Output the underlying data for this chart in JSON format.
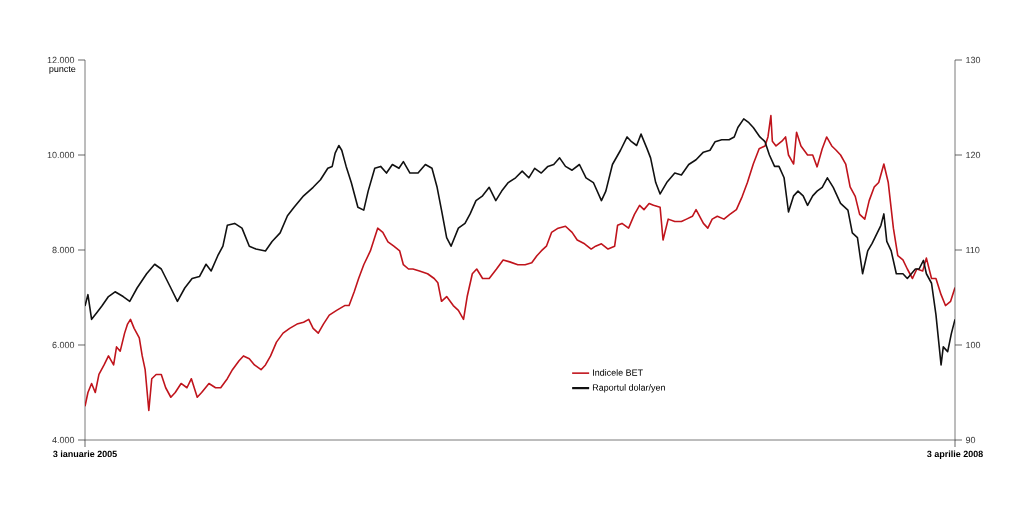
{
  "chart_data": {
    "type": "line",
    "ylabel": "puncte",
    "xlim": [
      "2005-01-03",
      "2008-04-03"
    ],
    "ylim": [
      4000,
      12000
    ],
    "yticks": [
      {
        "value": 4000,
        "label": "4.000"
      },
      {
        "value": 6000,
        "label": "6.000"
      },
      {
        "value": 8000,
        "label": "8.000"
      },
      {
        "value": 10000,
        "label": "10.000"
      },
      {
        "value": 12000,
        "label": "12.000"
      }
    ],
    "y2lim": [
      90,
      130
    ],
    "y2ticks": [
      90,
      100,
      110,
      120,
      130
    ],
    "xticks": [
      {
        "value": "2005-01-03",
        "label": "3 ianuarie 2005"
      },
      {
        "value": "2008-04-03",
        "label": "3 aprilie 2008"
      }
    ],
    "legend": "bottom",
    "grid": false,
    "marker": "none",
    "line_style": "solid",
    "series": [
      {
        "name": "Indicele BET",
        "color": "#c0141c",
        "x": [
          "2005-01-03",
          "2005-01-07",
          "2005-01-12",
          "2005-01-17",
          "2005-01-22",
          "2005-01-29",
          "2005-02-04",
          "2005-02-11",
          "2005-02-15",
          "2005-02-20",
          "2005-02-26",
          "2005-03-02",
          "2005-03-06",
          "2005-03-11",
          "2005-03-18",
          "2005-03-22",
          "2005-03-26",
          "2005-03-31",
          "2005-04-04",
          "2005-04-10",
          "2005-04-17",
          "2005-04-23",
          "2005-04-30",
          "2005-05-06",
          "2005-05-14",
          "2005-05-22",
          "2005-05-28",
          "2005-06-05",
          "2005-06-11",
          "2005-06-21",
          "2005-06-30",
          "2005-07-07",
          "2005-07-16",
          "2005-07-23",
          "2005-08-01",
          "2005-08-07",
          "2005-08-15",
          "2005-08-22",
          "2005-08-31",
          "2005-09-06",
          "2005-09-13",
          "2005-09-21",
          "2005-09-30",
          "2005-10-09",
          "2005-10-19",
          "2005-10-28",
          "2005-11-04",
          "2005-11-10",
          "2005-11-17",
          "2005-11-24",
          "2005-12-02",
          "2005-12-12",
          "2005-12-23",
          "2005-12-29",
          "2006-01-05",
          "2006-01-11",
          "2006-01-18",
          "2006-01-27",
          "2006-02-02",
          "2006-02-06",
          "2006-02-13",
          "2006-02-20",
          "2006-02-28",
          "2006-03-08",
          "2006-03-13",
          "2006-03-20",
          "2006-03-26",
          "2006-04-04",
          "2006-04-15",
          "2006-04-24",
          "2006-04-29",
          "2006-05-04",
          "2006-05-11",
          "2006-05-20",
          "2006-05-27",
          "2006-06-03",
          "2006-06-08",
          "2006-06-15",
          "2006-06-21",
          "2006-06-29",
          "2006-07-08",
          "2006-07-18",
          "2006-07-27",
          "2006-08-05",
          "2006-08-16",
          "2006-08-26",
          "2006-09-04",
          "2006-09-11",
          "2006-09-17",
          "2006-09-24",
          "2006-10-01",
          "2006-10-10",
          "2006-10-20",
          "2006-10-29",
          "2006-11-05",
          "2006-11-15",
          "2006-11-24",
          "2006-11-30",
          "2006-12-08",
          "2006-12-17",
          "2006-12-26",
          "2006-12-30",
          "2007-01-05",
          "2007-01-14",
          "2007-01-22",
          "2007-01-29",
          "2007-02-04",
          "2007-02-11",
          "2007-02-17",
          "2007-02-26",
          "2007-03-02",
          "2007-03-09",
          "2007-03-18",
          "2007-03-27",
          "2007-04-03",
          "2007-04-11",
          "2007-04-16",
          "2007-04-26",
          "2007-05-02",
          "2007-05-08",
          "2007-05-15",
          "2007-05-24",
          "2007-06-01",
          "2007-06-10",
          "2007-06-18",
          "2007-06-25",
          "2007-07-03",
          "2007-07-11",
          "2007-07-19",
          "2007-07-23",
          "2007-07-27",
          "2007-07-29",
          "2007-08-03",
          "2007-08-11",
          "2007-08-16",
          "2007-08-20",
          "2007-08-27",
          "2007-08-31",
          "2007-09-06",
          "2007-09-15",
          "2007-09-22",
          "2007-09-28",
          "2007-10-05",
          "2007-10-11",
          "2007-10-18",
          "2007-10-24",
          "2007-10-30",
          "2007-11-06",
          "2007-11-12",
          "2007-11-19",
          "2007-11-25",
          "2007-12-02",
          "2007-12-08",
          "2007-12-15",
          "2007-12-21",
          "2007-12-28",
          "2008-01-03",
          "2008-01-10",
          "2008-01-16",
          "2008-01-23",
          "2008-01-29",
          "2008-02-05",
          "2008-02-11",
          "2008-02-19",
          "2008-02-24",
          "2008-03-02",
          "2008-03-08",
          "2008-03-15",
          "2008-03-21",
          "2008-03-28",
          "2008-04-03"
        ],
        "values": [
          4710,
          5000,
          5190,
          5000,
          5380,
          5580,
          5770,
          5580,
          5960,
          5870,
          6250,
          6440,
          6540,
          6350,
          6150,
          5770,
          5480,
          4620,
          5290,
          5380,
          5380,
          5100,
          4900,
          5000,
          5190,
          5100,
          5290,
          4900,
          5000,
          5190,
          5100,
          5100,
          5290,
          5480,
          5670,
          5770,
          5710,
          5580,
          5480,
          5580,
          5770,
          6060,
          6250,
          6350,
          6440,
          6480,
          6540,
          6350,
          6250,
          6440,
          6630,
          6730,
          6830,
          6830,
          7120,
          7400,
          7690,
          7980,
          8270,
          8460,
          8370,
          8170,
          8080,
          7980,
          7690,
          7600,
          7600,
          7560,
          7500,
          7400,
          7310,
          6920,
          7020,
          6830,
          6730,
          6540,
          7020,
          7500,
          7600,
          7400,
          7400,
          7600,
          7790,
          7750,
          7690,
          7690,
          7730,
          7880,
          7980,
          8080,
          8370,
          8460,
          8500,
          8370,
          8210,
          8130,
          8020,
          8080,
          8130,
          8020,
          8080,
          8520,
          8560,
          8460,
          8750,
          8940,
          8850,
          8980,
          8940,
          8900,
          8210,
          8650,
          8600,
          8600,
          8650,
          8710,
          8850,
          8560,
          8460,
          8650,
          8710,
          8650,
          8750,
          8850,
          9130,
          9420,
          9810,
          10130,
          10190,
          10380,
          10830,
          10290,
          10190,
          10290,
          10380,
          10000,
          9810,
          10480,
          10190,
          10000,
          10000,
          9750,
          10130,
          10380,
          10190,
          10100,
          10000,
          9810,
          9330,
          9130,
          8750,
          8650,
          9040,
          9330,
          9420,
          9810,
          9420,
          8460,
          7880,
          7790,
          7600,
          7400,
          7600,
          7560,
          7830,
          7400,
          7400,
          7060,
          6830,
          6920,
          7210
        ]
      },
      {
        "name": "Raportul dolar/yen",
        "color": "#111111",
        "axis": "y2",
        "x": [
          "2005-01-03",
          "2005-01-07",
          "2005-01-12",
          "2005-01-19",
          "2005-01-26",
          "2005-02-04",
          "2005-02-13",
          "2005-02-24",
          "2005-03-05",
          "2005-03-15",
          "2005-03-28",
          "2005-04-08",
          "2005-04-17",
          "2005-04-30",
          "2005-05-09",
          "2005-05-19",
          "2005-05-29",
          "2005-06-08",
          "2005-06-17",
          "2005-06-24",
          "2005-07-03",
          "2005-07-10",
          "2005-07-16",
          "2005-07-26",
          "2005-08-05",
          "2005-08-15",
          "2005-08-24",
          "2005-09-06",
          "2005-09-15",
          "2005-09-26",
          "2005-10-06",
          "2005-10-15",
          "2005-10-28",
          "2005-11-10",
          "2005-11-20",
          "2005-11-30",
          "2005-12-06",
          "2005-12-10",
          "2005-12-15",
          "2005-12-19",
          "2005-12-25",
          "2006-01-01",
          "2006-01-10",
          "2006-01-18",
          "2006-01-24",
          "2006-02-02",
          "2006-02-10",
          "2006-02-18",
          "2006-02-26",
          "2006-03-07",
          "2006-03-13",
          "2006-03-22",
          "2006-04-02",
          "2006-04-12",
          "2006-04-21",
          "2006-04-28",
          "2006-05-04",
          "2006-05-11",
          "2006-05-17",
          "2006-05-27",
          "2006-06-05",
          "2006-06-12",
          "2006-06-20",
          "2006-06-29",
          "2006-07-08",
          "2006-07-17",
          "2006-07-25",
          "2006-08-03",
          "2006-08-13",
          "2006-08-22",
          "2006-08-31",
          "2006-09-08",
          "2006-09-17",
          "2006-09-26",
          "2006-10-04",
          "2006-10-12",
          "2006-10-20",
          "2006-10-29",
          "2006-11-08",
          "2006-11-17",
          "2006-11-27",
          "2006-12-08",
          "2006-12-14",
          "2006-12-23",
          "2007-01-03",
          "2007-01-12",
          "2007-01-18",
          "2007-01-25",
          "2007-01-31",
          "2007-02-08",
          "2007-02-13",
          "2007-02-20",
          "2007-02-26",
          "2007-03-07",
          "2007-03-18",
          "2007-03-27",
          "2007-04-06",
          "2007-04-16",
          "2007-04-26",
          "2007-05-05",
          "2007-05-12",
          "2007-05-21",
          "2007-05-31",
          "2007-06-07",
          "2007-06-12",
          "2007-06-20",
          "2007-06-27",
          "2007-07-03",
          "2007-07-12",
          "2007-07-19",
          "2007-07-25",
          "2007-08-01",
          "2007-08-07",
          "2007-08-14",
          "2007-08-20",
          "2007-08-27",
          "2007-09-02",
          "2007-09-09",
          "2007-09-15",
          "2007-09-22",
          "2007-09-28",
          "2007-10-05",
          "2007-10-12",
          "2007-10-20",
          "2007-10-30",
          "2007-11-09",
          "2007-11-15",
          "2007-11-22",
          "2007-11-29",
          "2007-12-06",
          "2007-12-12",
          "2007-12-19",
          "2007-12-24",
          "2007-12-28",
          "2008-01-01",
          "2008-01-07",
          "2008-01-14",
          "2008-01-23",
          "2008-01-29",
          "2008-02-09",
          "2008-02-14",
          "2008-02-20",
          "2008-02-24",
          "2008-03-02",
          "2008-03-08",
          "2008-03-15",
          "2008-03-18",
          "2008-03-24",
          "2008-03-29",
          "2008-04-03"
        ],
        "values": [
          104.1,
          105.3,
          102.7,
          103.4,
          104.1,
          105.1,
          105.6,
          105.1,
          104.6,
          106.0,
          107.5,
          108.5,
          108.0,
          106.0,
          104.6,
          106.0,
          107.0,
          107.2,
          108.5,
          107.8,
          109.4,
          110.4,
          112.6,
          112.8,
          112.3,
          110.4,
          110.1,
          109.9,
          110.9,
          111.8,
          113.6,
          114.5,
          115.7,
          116.6,
          117.4,
          118.6,
          118.8,
          120.2,
          121.0,
          120.5,
          118.8,
          117.1,
          114.5,
          114.2,
          116.2,
          118.6,
          118.8,
          118.1,
          119.0,
          118.6,
          119.3,
          118.1,
          118.1,
          119.0,
          118.6,
          116.6,
          114.2,
          111.3,
          110.4,
          112.3,
          112.8,
          113.8,
          115.2,
          115.7,
          116.6,
          115.2,
          116.2,
          117.1,
          117.6,
          118.3,
          117.6,
          118.6,
          118.1,
          118.8,
          119.0,
          119.7,
          118.8,
          118.4,
          119.0,
          117.6,
          117.1,
          115.2,
          116.2,
          119.0,
          120.5,
          121.9,
          121.4,
          121.0,
          122.2,
          120.7,
          119.7,
          117.1,
          115.9,
          117.1,
          118.1,
          117.9,
          119.0,
          119.5,
          120.3,
          120.5,
          121.4,
          121.6,
          121.6,
          121.9,
          122.9,
          123.8,
          123.4,
          122.9,
          121.9,
          121.4,
          120.0,
          118.8,
          118.8,
          117.6,
          114.0,
          115.7,
          116.2,
          115.7,
          114.7,
          115.7,
          116.2,
          116.6,
          117.6,
          116.6,
          114.9,
          114.2,
          111.8,
          111.3,
          107.5,
          109.9,
          110.7,
          111.8,
          112.6,
          113.8,
          110.9,
          109.9,
          107.5,
          107.5,
          107.0,
          108.0,
          108.0,
          108.9,
          107.5,
          106.5,
          103.2,
          97.9,
          99.8,
          99.3,
          101.2,
          102.7
        ]
      }
    ]
  }
}
